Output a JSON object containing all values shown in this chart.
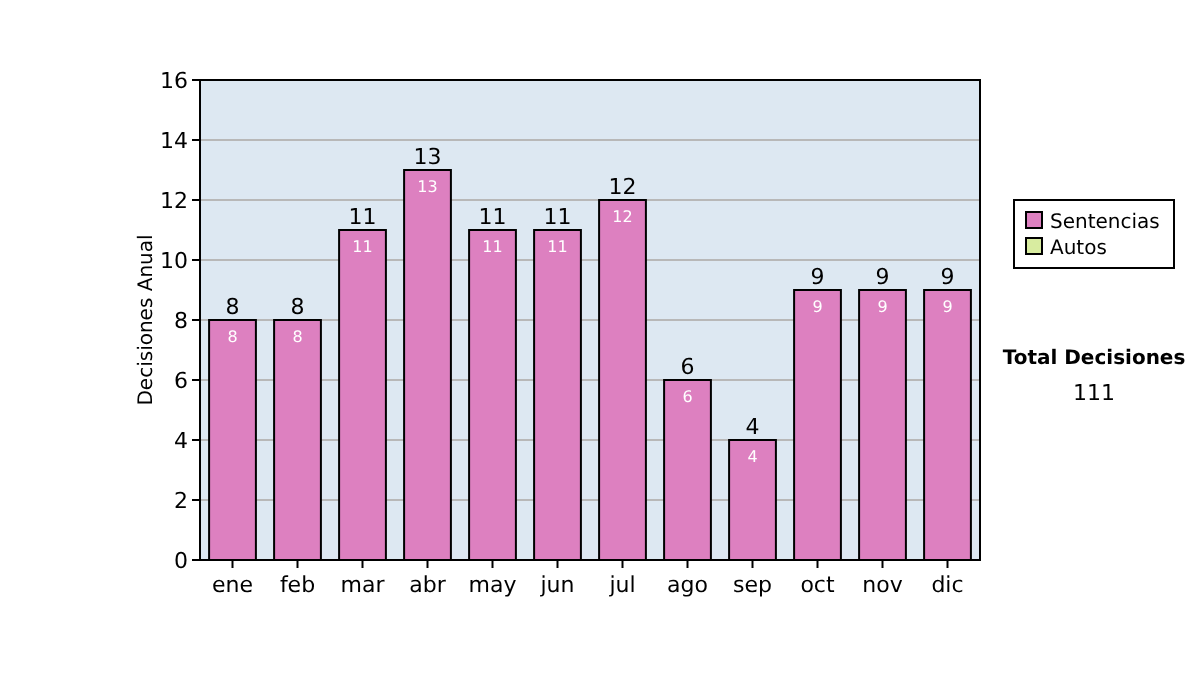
{
  "chart_data": {
    "type": "bar",
    "ylabel": "Decisiones Anual",
    "categories": [
      "ene",
      "feb",
      "mar",
      "abr",
      "may",
      "jun",
      "jul",
      "ago",
      "sep",
      "oct",
      "nov",
      "dic"
    ],
    "series": [
      {
        "name": "Sentencias",
        "color": "#dd80c0",
        "values": [
          8,
          8,
          11,
          13,
          11,
          11,
          12,
          6,
          4,
          9,
          9,
          9
        ],
        "value_labels": [
          "8",
          "8",
          "11",
          "13",
          "11",
          "11",
          "12",
          "6",
          "4",
          "9",
          "9",
          "9"
        ]
      },
      {
        "name": "Autos",
        "color": "#d8eca0",
        "values": [
          0,
          0,
          0,
          0,
          0,
          0,
          0,
          0,
          0,
          0,
          0,
          0
        ]
      }
    ],
    "totals": [
      "8",
      "8",
      "11",
      "13",
      "11",
      "11",
      "12",
      "6",
      "4",
      "9",
      "9",
      "9"
    ],
    "ylim": [
      0,
      16
    ],
    "yticks": [
      0,
      2,
      4,
      6,
      8,
      10,
      12,
      14,
      16
    ],
    "grid": "y",
    "legend": "right",
    "annotations": [
      "Total Decisiones",
      "111"
    ]
  }
}
